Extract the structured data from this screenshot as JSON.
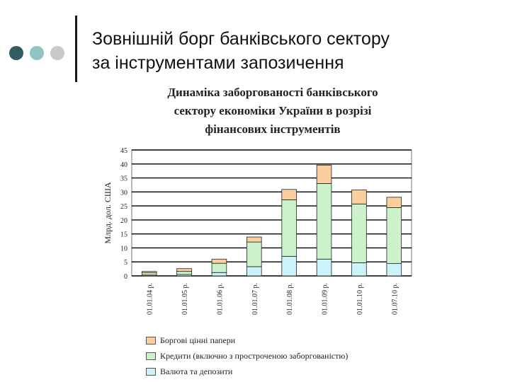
{
  "slide": {
    "title_line1": "Зовнішній борг банківського сектору",
    "title_line2": "за інструментами запозичення",
    "decor_colors": [
      "#2f5d62",
      "#8fc3c4",
      "#c9c9c9"
    ]
  },
  "chart_data": {
    "type": "bar",
    "stacked": true,
    "title_lines": [
      "Динаміка заборгованості банківського",
      "сектору економіки України в розрізі",
      "фінансових інструментів"
    ],
    "ylabel": "Млрд. дол. США",
    "xlabel": "",
    "ylim": [
      0,
      45
    ],
    "yticks": [
      0,
      5,
      10,
      15,
      20,
      25,
      30,
      35,
      40,
      45
    ],
    "grid": true,
    "legend_position": "bottom",
    "categories": [
      "01.01.04 р.",
      "01.01.05 р.",
      "01.01.06 р.",
      "01.01.07 р.",
      "01.01.08 р.",
      "01.01.09 р.",
      "01.01.10 р.",
      "01.07.10 р."
    ],
    "series": [
      {
        "name": "Валюта та депозити",
        "color": "#ccf3fb",
        "values": [
          0.3,
          0.5,
          1.2,
          3.3,
          7.0,
          6.0,
          4.7,
          4.4
        ]
      },
      {
        "name": "Кредити (включно з простроченою заборгованістю)",
        "color": "#ccf2cc",
        "values": [
          0.8,
          1.1,
          3.3,
          8.8,
          20.2,
          27.0,
          21.0,
          20.0
        ]
      },
      {
        "name": "Боргові цінні папери",
        "color": "#fbcf9d",
        "values": [
          0.5,
          1.0,
          1.5,
          1.8,
          3.7,
          6.6,
          5.0,
          3.7
        ]
      }
    ]
  }
}
